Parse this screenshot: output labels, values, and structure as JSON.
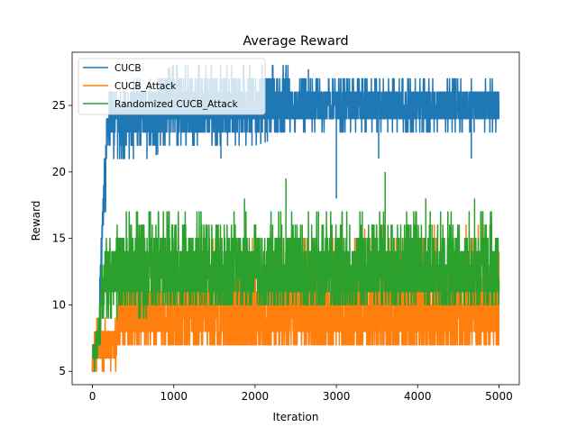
{
  "chart_data": {
    "type": "line",
    "title": "Average Reward",
    "xlabel": "Iteration",
    "ylabel": "Reward",
    "xlim": [
      -250,
      5250
    ],
    "ylim": [
      4.0,
      29.0
    ],
    "xticks": [
      0,
      1000,
      2000,
      3000,
      4000,
      5000
    ],
    "yticks": [
      5,
      10,
      15,
      20,
      25
    ],
    "grid": false,
    "legend_position": "upper-left",
    "series": [
      {
        "name": "CUCB",
        "color": "#1f77b4",
        "x": [
          0,
          20,
          40,
          60,
          80,
          100,
          120,
          150,
          200,
          300,
          400,
          500,
          700,
          1000,
          1500,
          2000,
          2500,
          3000,
          3500,
          4000,
          4500,
          5000
        ],
        "low": [
          5,
          5,
          5,
          6,
          7,
          10,
          12,
          16,
          21,
          21,
          21,
          21,
          21,
          22,
          22,
          22,
          23,
          23,
          23,
          23,
          23,
          23
        ],
        "high": [
          8,
          7,
          7,
          8,
          9,
          14,
          17,
          22,
          26,
          26,
          26,
          27,
          27,
          28,
          28,
          28,
          28,
          27,
          27,
          27,
          27,
          27
        ],
        "mean": [
          5.5,
          5.5,
          6,
          7,
          8,
          12,
          15,
          20,
          24,
          24,
          24,
          24.5,
          24.5,
          25,
          25,
          25,
          25,
          25,
          25,
          25,
          25,
          25
        ]
      },
      {
        "name": "CUCB_Attack",
        "color": "#ff7f0e",
        "x": [
          0,
          50,
          100,
          150,
          200,
          250,
          290,
          300,
          350,
          400,
          500,
          700,
          1000,
          1500,
          2000,
          2500,
          3000,
          3500,
          4000,
          4500,
          5000
        ],
        "low": [
          5,
          5,
          5,
          5,
          5,
          5,
          5,
          7,
          7,
          7,
          7,
          7,
          7,
          7,
          7,
          7,
          7,
          7,
          7,
          7,
          7
        ],
        "high": [
          7,
          9,
          9,
          9,
          9,
          9,
          9,
          11,
          12,
          13,
          13,
          14,
          14,
          15,
          15,
          15,
          15,
          16,
          16,
          16,
          16
        ],
        "mean": [
          6,
          7,
          7,
          7,
          7,
          7,
          7,
          8.5,
          9,
          9,
          9,
          9,
          9,
          9,
          9,
          9,
          9,
          9,
          9,
          9,
          9
        ]
      },
      {
        "name": "Randomized CUCB_Attack",
        "color": "#2ca02c",
        "x": [
          0,
          50,
          100,
          150,
          200,
          300,
          400,
          500,
          700,
          1000,
          1500,
          2000,
          2500,
          3000,
          3500,
          4000,
          4500,
          5000
        ],
        "low": [
          5,
          5,
          7,
          9,
          9,
          9,
          9,
          9,
          9,
          10,
          10,
          10,
          10,
          10,
          10,
          10,
          10,
          10
        ],
        "high": [
          7,
          9,
          12,
          15,
          15,
          16,
          17,
          17,
          17,
          17,
          17,
          17,
          17,
          17,
          17,
          17,
          17,
          17
        ],
        "mean": [
          6,
          7,
          9.5,
          12,
          12,
          12.5,
          12.5,
          12.5,
          12.5,
          12.5,
          12.5,
          12.5,
          12.5,
          12.5,
          12.5,
          12.5,
          12.5,
          12.5
        ]
      }
    ],
    "spikes": [
      {
        "series": 0,
        "x": 3000,
        "y": 18
      },
      {
        "series": 0,
        "x": 3520,
        "y": 21
      },
      {
        "series": 0,
        "x": 1580,
        "y": 21
      },
      {
        "series": 0,
        "x": 4660,
        "y": 21
      },
      {
        "series": 2,
        "x": 2380,
        "y": 19.5
      },
      {
        "series": 2,
        "x": 3600,
        "y": 20
      },
      {
        "series": 2,
        "x": 1870,
        "y": 18
      },
      {
        "series": 2,
        "x": 4100,
        "y": 18
      },
      {
        "series": 2,
        "x": 4700,
        "y": 18
      }
    ]
  }
}
